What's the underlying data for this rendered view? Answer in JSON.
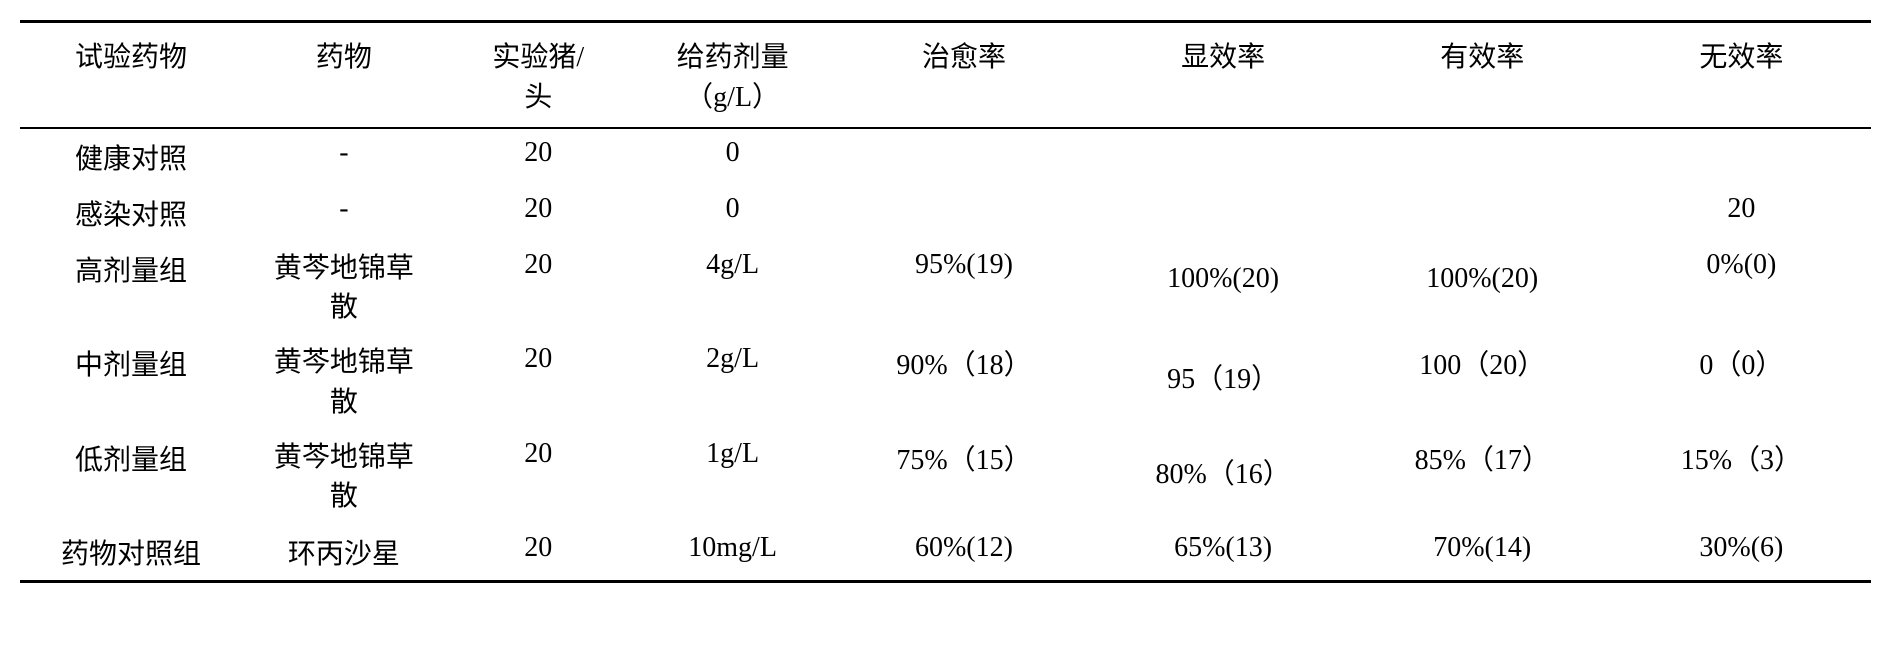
{
  "table": {
    "columns": [
      "试验药物",
      "药物",
      "实验猪/头",
      "给药剂量（g/L）",
      "治愈率",
      "显效率",
      "有效率",
      "无效率"
    ],
    "rows": [
      {
        "group": "健康对照",
        "drug": "-",
        "pigs": "20",
        "dose": "0",
        "cure": "",
        "marked": "",
        "effective": "",
        "ineffective": ""
      },
      {
        "group": "感染对照",
        "drug": "-",
        "pigs": "20",
        "dose": "0",
        "cure": "",
        "marked": "",
        "effective": "",
        "ineffective": "20"
      },
      {
        "group": "高剂量组",
        "drug": "黄芩地锦草散",
        "pigs": "20",
        "dose": "4g/L",
        "cure": "95%(19)",
        "marked": "100%(20)",
        "effective": "100%(20)",
        "ineffective": "0%(0)"
      },
      {
        "group": "中剂量组",
        "drug": "黄芩地锦草散",
        "pigs": "20",
        "dose": "2g/L",
        "cure": "90%（18）",
        "marked": "95（19）",
        "effective": "100（20）",
        "ineffective": "0（0）"
      },
      {
        "group": "低剂量组",
        "drug": "黄芩地锦草散",
        "pigs": "20",
        "dose": "1g/L",
        "cure": "75%（15）",
        "marked": "80%（16）",
        "effective": "85%（17）",
        "ineffective": "15%（3）"
      },
      {
        "group": "药物对照组",
        "drug": "环丙沙星",
        "pigs": "20",
        "dose": "10mg/L",
        "cure": "60%(12)",
        "marked": "65%(13)",
        "effective": "70%(14)",
        "ineffective": "30%(6)"
      }
    ],
    "styles": {
      "font_family": "SimSun",
      "font_size": 28,
      "text_color": "#000000",
      "background_color": "#ffffff",
      "border_color": "#000000",
      "top_border_width": 3,
      "header_bottom_border_width": 2,
      "bottom_border_width": 3,
      "column_widths_pct": [
        12,
        11,
        10,
        11,
        14,
        14,
        14,
        14
      ]
    }
  }
}
